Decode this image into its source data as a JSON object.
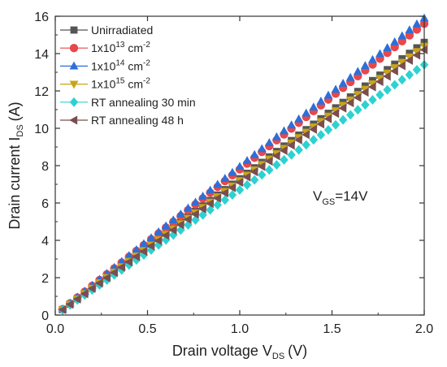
{
  "chart_data": {
    "type": "scatter",
    "xlabel": "Drain voltage V",
    "xlabel_sub": "DS",
    "xlabel_unit": "(V)",
    "ylabel": "Drain current I",
    "ylabel_sub": "DS",
    "ylabel_unit": "(A)",
    "xlim": [
      0.0,
      2.0
    ],
    "ylim": [
      0,
      16
    ],
    "xticks": [
      0.0,
      0.5,
      1.0,
      1.5,
      2.0
    ],
    "xtick_labels": [
      "0.0",
      "0.5",
      "1.0",
      "1.5",
      "2.0"
    ],
    "yticks": [
      0,
      2,
      4,
      6,
      8,
      10,
      12,
      14,
      16
    ],
    "ytick_labels": [
      "0",
      "2",
      "4",
      "6",
      "8",
      "10",
      "12",
      "14",
      "16"
    ],
    "grid": false,
    "legend_position": "top-left",
    "annotation": {
      "main": "V",
      "sub": "GS",
      "rest": "=14V"
    },
    "x_start": 0.04,
    "x_step": 0.04,
    "point_count": 50,
    "series": [
      {
        "name": "Unirradiated",
        "marker": "square",
        "color": "#555555",
        "slope": 7.3,
        "legend": {
          "main": "Unirradiated",
          "sup": "",
          "rest": ""
        }
      },
      {
        "name": "1x10^13 cm^-2",
        "marker": "circle",
        "color": "#e8474b",
        "slope": 7.8,
        "legend": {
          "main": "1x10",
          "sup": "13",
          "rest": " cm",
          "sup2": "-2"
        }
      },
      {
        "name": "1x10^14 cm^-2",
        "marker": "triangle-up",
        "color": "#2d6fd8",
        "slope": 7.95,
        "legend": {
          "main": "1x10",
          "sup": "14",
          "rest": " cm",
          "sup2": "-2"
        }
      },
      {
        "name": "1x10^15 cm^-2",
        "marker": "triangle-down",
        "color": "#c9a418",
        "slope": 7.2,
        "legend": {
          "main": "1x10",
          "sup": "15",
          "rest": " cm",
          "sup2": "-2"
        }
      },
      {
        "name": "RT annealing 30 min",
        "marker": "diamond",
        "color": "#2ed1d1",
        "slope": 6.7,
        "legend": {
          "main": "RT annealing 30 min",
          "sup": "",
          "rest": ""
        }
      },
      {
        "name": "RT annealing 48 h",
        "marker": "triangle-left",
        "color": "#7a4e4e",
        "slope": 7.1,
        "legend": {
          "main": "RT annealing 48 h",
          "sup": "",
          "rest": ""
        }
      }
    ]
  }
}
